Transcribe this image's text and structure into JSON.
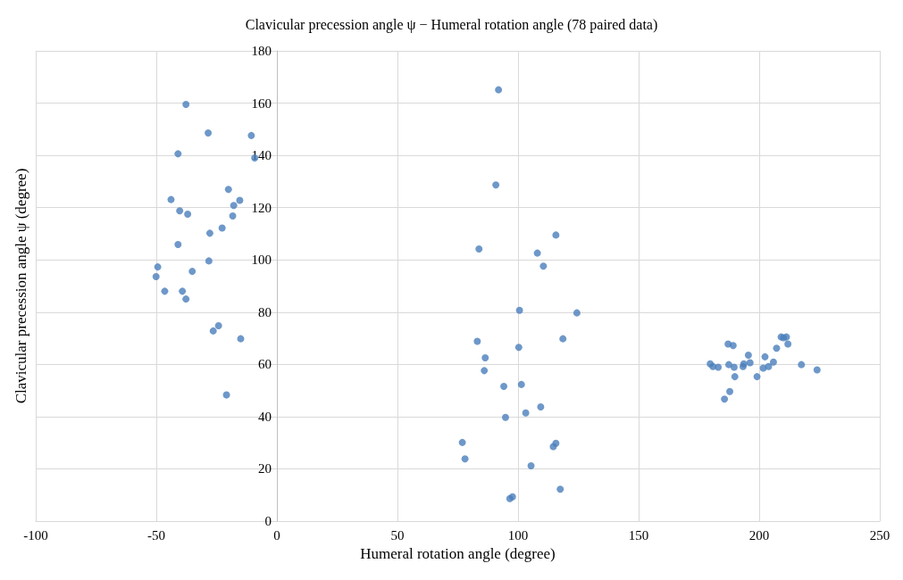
{
  "chart_data": {
    "type": "scatter",
    "title": "Clavicular precession angle ψ − Humeral rotation angle (78 paired data)",
    "xlabel": "Humeral rotation angle (degree)",
    "ylabel": "Clavicular precession angle ψ (degree)",
    "xlim": [
      -100,
      250
    ],
    "xticks": [
      -100,
      -50,
      0,
      50,
      100,
      150,
      200,
      250
    ],
    "ylim": [
      0,
      180
    ],
    "yticks": [
      0,
      20,
      40,
      60,
      80,
      100,
      120,
      140,
      160,
      180
    ],
    "grid": true,
    "marker": "circle",
    "series": [
      {
        "color": "#4a7ebb",
        "x": [
          -37.7,
          -28.5,
          -10.6,
          -41,
          -9.2,
          -20.1,
          -43.9,
          -15.4,
          -17.9,
          -40.3,
          -37,
          -18.3,
          -22.7,
          -27.8,
          -41,
          -28.2,
          -49.4,
          -35.1,
          -50.1,
          -46.5,
          -39.2,
          -37.7,
          -24.2,
          -26.4,
          -15,
          -20.9,
          91.9,
          90.8,
          115.7,
          83.8,
          108,
          110.5,
          100.6,
          124.4,
          83.1,
          118.6,
          100.3,
          86.4,
          86,
          94.1,
          101.4,
          109.4,
          94.8,
          103.2,
          76.9,
          115.7,
          114.6,
          78,
          105.4,
          97.7,
          96.6,
          117.5,
          179.7,
          180.8,
          183,
          187.1,
          189.2,
          187.4,
          189.6,
          189.9,
          187.8,
          185.6,
          193.3,
          193.6,
          195.5,
          196.2,
          199.1,
          201.7,
          203.9,
          202.4,
          205.9,
          207.2,
          211.9,
          209.1,
          211.3,
          210.1,
          217.5,
          224
        ],
        "values": [
          159.5,
          148.6,
          147.6,
          140.6,
          139,
          127,
          123.1,
          122.8,
          120.8,
          118.8,
          117.5,
          116.8,
          112.2,
          110.2,
          105.9,
          99.6,
          97.3,
          95.6,
          93.6,
          88,
          88,
          85,
          74.8,
          72.8,
          69.8,
          48.3,
          165.1,
          128.7,
          109.5,
          104.2,
          102.6,
          97.6,
          80.7,
          79.7,
          68.8,
          69.8,
          66.5,
          62.5,
          57.6,
          51.6,
          52.3,
          43.7,
          39.7,
          41.4,
          30.1,
          29.8,
          28.5,
          23.8,
          21.2,
          9.3,
          8.6,
          12.2,
          60.2,
          59.2,
          58.9,
          67.8,
          67.2,
          59.9,
          58.9,
          55.3,
          49.6,
          46.7,
          59.2,
          60.2,
          63.5,
          60.6,
          55.3,
          58.6,
          59.2,
          62.9,
          60.9,
          66.2,
          67.8,
          70.5,
          70.5,
          70.2,
          59.9,
          57.9
        ]
      }
    ]
  }
}
